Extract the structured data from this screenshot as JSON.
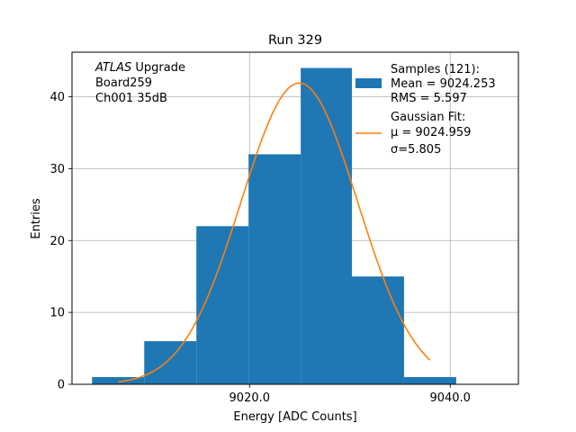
{
  "chart_data": {
    "type": "bar",
    "title": "Run 329",
    "xlabel": "Energy [ADC Counts]",
    "ylabel": "Entries",
    "xlim": [
      9002.3,
      9046.8
    ],
    "ylim": [
      0,
      46.2
    ],
    "xticks": [
      9020,
      9040
    ],
    "xtick_labels": [
      "9020.0",
      "9040.0"
    ],
    "yticks": [
      0,
      10,
      20,
      30,
      40
    ],
    "ytick_labels": [
      "0",
      "10",
      "20",
      "30",
      "40"
    ],
    "grid": true,
    "bar_color": "#1f77b4",
    "fit_color": "#ff7f0e",
    "bins": [
      {
        "left": 9004.3,
        "right": 9009.5,
        "count": 1
      },
      {
        "left": 9009.5,
        "right": 9014.7,
        "count": 6
      },
      {
        "left": 9014.7,
        "right": 9019.9,
        "count": 22
      },
      {
        "left": 9019.9,
        "right": 9025.1,
        "count": 32
      },
      {
        "left": 9025.1,
        "right": 9030.2,
        "count": 44
      },
      {
        "left": 9030.2,
        "right": 9035.4,
        "count": 15
      },
      {
        "left": 9035.4,
        "right": 9040.6,
        "count": 1
      }
    ],
    "fit": {
      "mu": 9024.959,
      "sigma": 5.805,
      "amplitude": 41.9,
      "x_start": 9006.9,
      "x_end": 9038.0
    },
    "annotation": {
      "italic": "ATLAS",
      "line1_rest": " Upgrade",
      "line2": " Board259",
      "line3": " Ch001 35dB"
    },
    "legend": {
      "placement": "top-right",
      "samples_title": "Samples (121):",
      "samples_mean": " Mean = 9024.253",
      "samples_rms": " RMS = 5.597",
      "fit_title": "Gaussian Fit:",
      "fit_mu": " μ = 9024.959",
      "fit_sigma": " σ=5.805"
    }
  }
}
